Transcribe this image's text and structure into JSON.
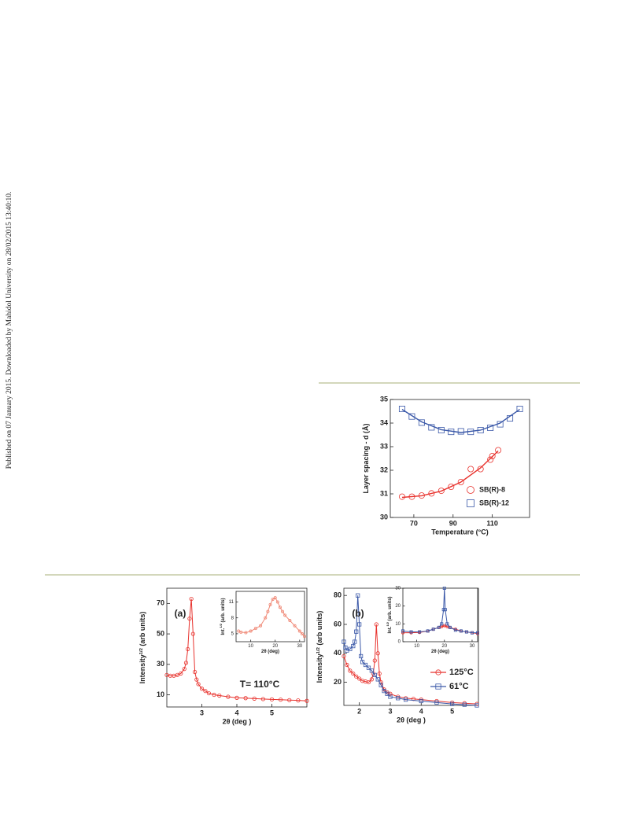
{
  "side_note": "Published on 07 January 2015. Downloaded by Mahidol University on 28/02/2015 13:40:10.",
  "chart_data": [
    {
      "type": "scatter",
      "xlabel": "Temperature (°C)",
      "ylabel": [
        "Layer spacing - d (Å)"
      ],
      "xlim": [
        58,
        129
      ],
      "ylim": [
        30,
        35
      ],
      "xticks": [
        70,
        90,
        110
      ],
      "yticks": [
        30,
        31,
        32,
        33,
        34,
        35
      ],
      "series": [
        {
          "name": "SB(R)-8",
          "color": "#e8322d",
          "marker": "circle",
          "x": [
            64,
            69,
            74,
            79,
            84,
            89,
            94,
            99,
            104,
            109,
            110,
            113
          ],
          "values": [
            30.88,
            30.88,
            30.93,
            31.02,
            31.13,
            31.3,
            31.5,
            32.05,
            32.05,
            32.45,
            32.6,
            32.85
          ]
        },
        {
          "name": "SB(R)-12",
          "color": "#3a58a8",
          "marker": "square",
          "x": [
            64,
            69,
            74,
            79,
            84,
            89,
            94,
            99,
            104,
            109,
            114,
            119,
            124
          ],
          "values": [
            34.6,
            34.28,
            34.02,
            33.82,
            33.7,
            33.63,
            33.65,
            33.63,
            33.7,
            33.8,
            33.95,
            34.2,
            34.6
          ]
        }
      ],
      "fits": [
        {
          "color": "#e8322d",
          "x": [
            64,
            74,
            84,
            94,
            104,
            113
          ],
          "values": [
            30.85,
            30.92,
            31.12,
            31.5,
            32.1,
            32.82
          ]
        },
        {
          "color": "#3a58a8",
          "x": [
            64,
            74,
            84,
            94,
            104,
            114,
            124
          ],
          "values": [
            34.58,
            34.05,
            33.72,
            33.6,
            33.7,
            34.0,
            34.58
          ]
        }
      ]
    },
    {
      "type": "line",
      "xlabel": "2θ (deg )",
      "ylabel": [
        "Intensity",
        "1/2",
        " (arb units)"
      ],
      "xlim": [
        2,
        6
      ],
      "ylim": [
        2,
        80
      ],
      "xticks": [
        3,
        4,
        5
      ],
      "yticks": [
        10,
        30,
        50,
        70
      ],
      "annotations": [
        {
          "text": "(a)",
          "color": "#222222"
        },
        {
          "text": "T= 110°C",
          "color": "#e8322d"
        }
      ],
      "series": [
        {
          "color": "#e8322d",
          "marker": "circle",
          "x": [
            2.0,
            2.1,
            2.2,
            2.3,
            2.4,
            2.5,
            2.55,
            2.6,
            2.65,
            2.7,
            2.75,
            2.8,
            2.85,
            2.9,
            3.0,
            3.1,
            3.2,
            3.35,
            3.5,
            3.75,
            4.0,
            4.25,
            4.5,
            4.75,
            5.0,
            5.25,
            5.5,
            5.75,
            6.0
          ],
          "values": [
            23,
            22.5,
            22.5,
            23,
            24,
            27,
            31,
            40,
            60,
            73,
            50,
            25,
            20,
            17,
            14,
            12.5,
            11,
            10,
            9.5,
            8.7,
            8,
            7.8,
            7.5,
            7.2,
            7,
            6.8,
            6.5,
            6.3,
            6
          ]
        }
      ]
    },
    {
      "type": "line",
      "xlabel": "2θ (deg)",
      "ylabel": [
        "Int.",
        "1/2",
        " (arb. units)"
      ],
      "xlim": [
        4,
        32
      ],
      "ylim": [
        3.5,
        13
      ],
      "xticks": [
        10,
        20,
        30
      ],
      "yticks": [
        5,
        8,
        11
      ],
      "series": [
        {
          "color": "#f08a78",
          "marker": "circle",
          "x": [
            5,
            6,
            8,
            10,
            12,
            14,
            16,
            17,
            18,
            19,
            20,
            21,
            22,
            23,
            24,
            26,
            28,
            30,
            31,
            32
          ],
          "values": [
            5.5,
            5.3,
            5.2,
            5.5,
            6,
            6.5,
            8,
            9.2,
            10.5,
            11.5,
            11.8,
            11,
            10,
            9.2,
            8.5,
            7.5,
            6.5,
            5.5,
            5,
            4.5
          ]
        }
      ]
    },
    {
      "type": "line",
      "xlabel": "2θ (deg )",
      "ylabel": [
        "Intensity",
        "1/2",
        " (arb units)"
      ],
      "xlim": [
        1.5,
        5.85
      ],
      "ylim": [
        4,
        85
      ],
      "xticks": [
        2,
        3,
        4,
        5
      ],
      "yticks": [
        20,
        40,
        60,
        80
      ],
      "annotations": [
        {
          "text": "(b)",
          "color": "#222222"
        }
      ],
      "series": [
        {
          "name": "125°C",
          "color": "#e8322d",
          "marker": "circle",
          "x": [
            1.5,
            1.6,
            1.7,
            1.8,
            1.9,
            2.0,
            2.1,
            2.2,
            2.3,
            2.4,
            2.45,
            2.5,
            2.55,
            2.6,
            2.65,
            2.7,
            2.8,
            2.9,
            3.0,
            3.25,
            3.5,
            3.75,
            4.0,
            4.5,
            5.0,
            5.4,
            5.8
          ],
          "values": [
            38,
            32,
            28,
            26,
            24,
            22.5,
            21,
            20.5,
            20,
            22,
            26,
            35,
            60,
            40,
            26,
            20,
            15,
            13,
            12,
            10,
            9,
            8.5,
            8,
            7,
            6,
            5.5,
            5
          ]
        },
        {
          "name": "61°C",
          "color": "#3a58a8",
          "marker": "square",
          "x": [
            1.5,
            1.55,
            1.6,
            1.7,
            1.8,
            1.85,
            1.9,
            1.95,
            2.0,
            2.05,
            2.1,
            2.2,
            2.3,
            2.4,
            2.5,
            2.6,
            2.7,
            2.8,
            2.9,
            3.0,
            3.25,
            3.5,
            4.0,
            4.5,
            5.0,
            5.4,
            5.8
          ],
          "values": [
            48,
            44,
            42,
            43,
            45,
            48,
            55,
            80,
            60,
            38,
            34,
            32,
            30,
            28,
            25,
            22,
            18,
            14,
            12,
            10,
            9,
            8,
            7,
            6,
            5,
            4.5,
            4
          ]
        }
      ]
    },
    {
      "type": "line",
      "xlabel": "2θ (deg)",
      "ylabel": [
        "Int.",
        "1/2",
        " (arb. units)"
      ],
      "xlim": [
        5,
        32
      ],
      "ylim": [
        0,
        30
      ],
      "xticks": [
        10,
        20,
        30
      ],
      "yticks": [
        0,
        10,
        20,
        30
      ],
      "series": [
        {
          "color": "#e8322d",
          "marker": "circle",
          "x": [
            5,
            8,
            11,
            14,
            16,
            18,
            19,
            20,
            21,
            22,
            24,
            26,
            28,
            30,
            32
          ],
          "values": [
            5,
            5,
            5.2,
            6,
            7,
            8,
            8.5,
            9,
            8.5,
            8,
            7,
            6,
            5.5,
            5,
            4.5
          ]
        },
        {
          "color": "#3a58a8",
          "marker": "square",
          "x": [
            5,
            8,
            11,
            14,
            16,
            18,
            19,
            19.7,
            20,
            20.3,
            21,
            22,
            24,
            26,
            28,
            30,
            32
          ],
          "values": [
            6,
            5.5,
            5.5,
            6,
            7,
            8,
            10,
            18,
            30,
            18,
            10,
            8,
            6.5,
            6,
            5.5,
            5,
            5
          ]
        }
      ]
    }
  ]
}
